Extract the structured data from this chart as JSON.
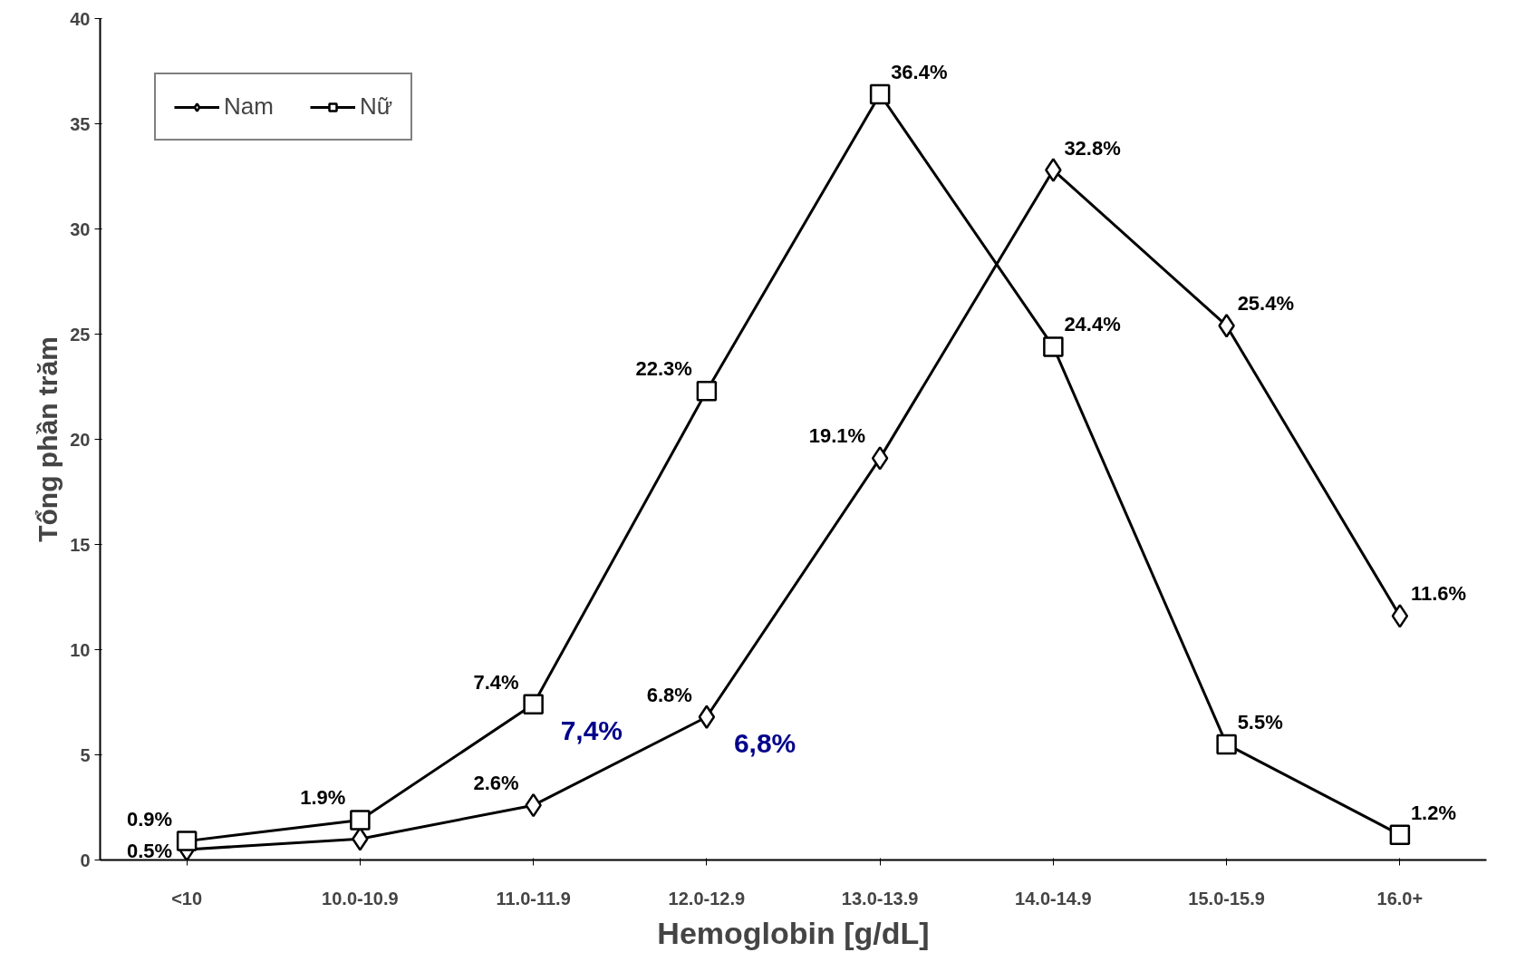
{
  "chart_data": {
    "type": "line",
    "xlabel": "Hemoglobin [g/dL]",
    "ylabel": "Tổng phần trăm",
    "categories": [
      "<10",
      "10.0-10.9",
      "11.0-11.9",
      "12.0-12.9",
      "13.0-13.9",
      "14.0-14.9",
      "15.0-15.9",
      "16.0+"
    ],
    "series": [
      {
        "name": "Nam",
        "color": "#000000",
        "marker": "diamond",
        "values": [
          0.5,
          1.0,
          2.6,
          6.8,
          19.1,
          32.8,
          25.4,
          11.6
        ],
        "value_labels": [
          "0.5%",
          null,
          "2.6%",
          "6.8%",
          "19.1%",
          "32.8%",
          "25.4%",
          "11.6%"
        ]
      },
      {
        "name": "Nữ",
        "color": "#000000",
        "marker": "square",
        "values": [
          0.9,
          1.9,
          7.4,
          22.3,
          36.4,
          24.4,
          5.5,
          1.2
        ],
        "value_labels": [
          "0.9%",
          "1.9%",
          "7.4%",
          "22.3%",
          "36.4%",
          "24.4%",
          "5.5%",
          "1.2%"
        ]
      }
    ],
    "annotations": [
      {
        "text": "7,4%",
        "x": "11.0-11.9",
        "y": 7.4
      },
      {
        "text": "6,8%",
        "x": "12.0-12.9",
        "y": 6.8
      }
    ],
    "ylim": [
      0,
      40
    ],
    "yticks": [
      0,
      5,
      10,
      15,
      20,
      25,
      30,
      35,
      40
    ],
    "grid": false,
    "legend": "top left",
    "line_style": "solid"
  }
}
